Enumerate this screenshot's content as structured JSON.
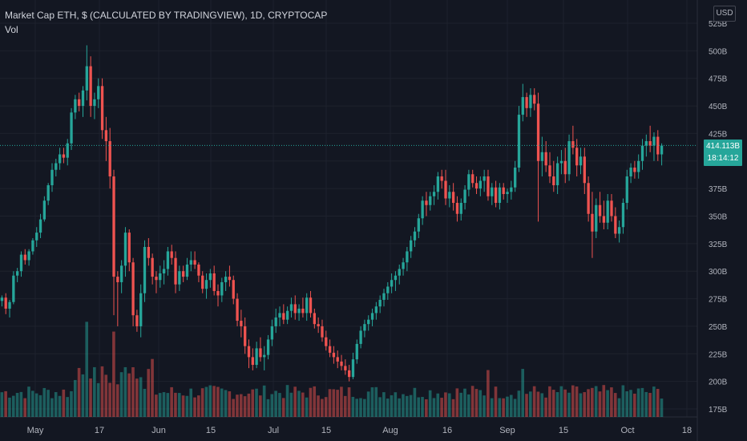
{
  "legend": {
    "title": "Market Cap ETH, $ (CALCULATED BY TRADINGVIEW), 1D, CRYPTOCAP",
    "indicator": "Vol"
  },
  "currency_button": "USD",
  "last_price": {
    "value": "414.113B",
    "countdown": "18:14:12"
  },
  "colors": {
    "background": "#131722",
    "up": "#26a69a",
    "down": "#ef5350",
    "grid": "#1e222d",
    "axis_text": "#b2b5be"
  },
  "chart_data": {
    "type": "candlestick",
    "y_axis_ticks": [
      "525B",
      "500B",
      "475B",
      "450B",
      "425B",
      "400B",
      "375B",
      "350B",
      "325B",
      "300B",
      "275B",
      "250B",
      "225B",
      "200B",
      "175B"
    ],
    "x_axis_ticks": [
      "May",
      "17",
      "Jun",
      "15",
      "Jul",
      "15",
      "Aug",
      "16",
      "Sep",
      "15",
      "Oct",
      "18"
    ],
    "current_value": 414.113,
    "unit": "B USD",
    "candles": [
      [
        273,
        278,
        268,
        276
      ],
      [
        276,
        280,
        261,
        266
      ],
      [
        266,
        274,
        258,
        272
      ],
      [
        272,
        300,
        270,
        296
      ],
      [
        296,
        303,
        290,
        300
      ],
      [
        300,
        318,
        295,
        315
      ],
      [
        315,
        320,
        306,
        310
      ],
      [
        310,
        320,
        305,
        318
      ],
      [
        318,
        330,
        315,
        328
      ],
      [
        328,
        340,
        322,
        335
      ],
      [
        335,
        352,
        330,
        347
      ],
      [
        347,
        368,
        345,
        364
      ],
      [
        364,
        380,
        360,
        378
      ],
      [
        378,
        398,
        372,
        392
      ],
      [
        392,
        402,
        386,
        398
      ],
      [
        398,
        412,
        392,
        406
      ],
      [
        406,
        412,
        398,
        403
      ],
      [
        403,
        420,
        396,
        416
      ],
      [
        416,
        448,
        410,
        444
      ],
      [
        444,
        460,
        438,
        456
      ],
      [
        456,
        462,
        445,
        450
      ],
      [
        450,
        468,
        440,
        464
      ],
      [
        464,
        505,
        455,
        486
      ],
      [
        486,
        495,
        440,
        450
      ],
      [
        450,
        462,
        438,
        456
      ],
      [
        456,
        475,
        448,
        468
      ],
      [
        468,
        475,
        420,
        428
      ],
      [
        428,
        440,
        400,
        418
      ],
      [
        418,
        430,
        375,
        386
      ],
      [
        386,
        392,
        260,
        295
      ],
      [
        295,
        300,
        250,
        290
      ],
      [
        290,
        310,
        280,
        305
      ],
      [
        305,
        340,
        295,
        335
      ],
      [
        335,
        338,
        300,
        308
      ],
      [
        308,
        312,
        250,
        260
      ],
      [
        260,
        265,
        245,
        250
      ],
      [
        250,
        288,
        240,
        280
      ],
      [
        280,
        328,
        272,
        322
      ],
      [
        322,
        330,
        305,
        312
      ],
      [
        312,
        316,
        288,
        295
      ],
      [
        295,
        300,
        280,
        292
      ],
      [
        292,
        305,
        285,
        298
      ],
      [
        298,
        310,
        288,
        302
      ],
      [
        302,
        322,
        296,
        318
      ],
      [
        318,
        324,
        306,
        312
      ],
      [
        312,
        318,
        280,
        288
      ],
      [
        288,
        305,
        282,
        300
      ],
      [
        300,
        305,
        290,
        295
      ],
      [
        295,
        312,
        292,
        306
      ],
      [
        306,
        318,
        300,
        310
      ],
      [
        310,
        318,
        302,
        306
      ],
      [
        306,
        308,
        290,
        296
      ],
      [
        296,
        300,
        280,
        284
      ],
      [
        284,
        298,
        275,
        292
      ],
      [
        292,
        302,
        285,
        298
      ],
      [
        298,
        305,
        278,
        282
      ],
      [
        282,
        288,
        268,
        278
      ],
      [
        278,
        294,
        272,
        290
      ],
      [
        290,
        300,
        282,
        295
      ],
      [
        295,
        305,
        286,
        292
      ],
      [
        292,
        296,
        270,
        275
      ],
      [
        275,
        280,
        250,
        255
      ],
      [
        255,
        265,
        240,
        250
      ],
      [
        250,
        258,
        225,
        232
      ],
      [
        232,
        238,
        212,
        222
      ],
      [
        222,
        230,
        210,
        215
      ],
      [
        215,
        236,
        212,
        230
      ],
      [
        230,
        240,
        218,
        222
      ],
      [
        222,
        232,
        210,
        224
      ],
      [
        224,
        242,
        220,
        238
      ],
      [
        238,
        256,
        232,
        250
      ],
      [
        250,
        266,
        244,
        258
      ],
      [
        258,
        268,
        250,
        262
      ],
      [
        262,
        270,
        252,
        256
      ],
      [
        256,
        268,
        252,
        264
      ],
      [
        264,
        276,
        258,
        270
      ],
      [
        270,
        278,
        256,
        262
      ],
      [
        262,
        270,
        255,
        266
      ],
      [
        266,
        276,
        258,
        262
      ],
      [
        262,
        280,
        255,
        276
      ],
      [
        276,
        282,
        258,
        262
      ],
      [
        262,
        266,
        248,
        252
      ],
      [
        252,
        258,
        244,
        250
      ],
      [
        250,
        256,
        236,
        240
      ],
      [
        240,
        246,
        228,
        232
      ],
      [
        232,
        238,
        222,
        226
      ],
      [
        226,
        232,
        216,
        222
      ],
      [
        222,
        228,
        212,
        218
      ],
      [
        218,
        224,
        210,
        214
      ],
      [
        214,
        220,
        206,
        210
      ],
      [
        210,
        215,
        200,
        204
      ],
      [
        204,
        226,
        202,
        220
      ],
      [
        220,
        238,
        216,
        234
      ],
      [
        234,
        250,
        230,
        246
      ],
      [
        246,
        256,
        240,
        252
      ],
      [
        252,
        260,
        246,
        256
      ],
      [
        256,
        266,
        250,
        262
      ],
      [
        262,
        272,
        256,
        268
      ],
      [
        268,
        278,
        262,
        274
      ],
      [
        274,
        284,
        268,
        280
      ],
      [
        280,
        290,
        274,
        286
      ],
      [
        286,
        298,
        280,
        292
      ],
      [
        292,
        300,
        282,
        296
      ],
      [
        296,
        306,
        288,
        302
      ],
      [
        302,
        312,
        296,
        308
      ],
      [
        308,
        322,
        300,
        318
      ],
      [
        318,
        332,
        312,
        328
      ],
      [
        328,
        340,
        322,
        336
      ],
      [
        336,
        352,
        330,
        348
      ],
      [
        348,
        368,
        342,
        364
      ],
      [
        364,
        372,
        350,
        360
      ],
      [
        360,
        372,
        355,
        368
      ],
      [
        368,
        378,
        360,
        372
      ],
      [
        372,
        390,
        365,
        386
      ],
      [
        386,
        392,
        375,
        382
      ],
      [
        382,
        392,
        360,
        366
      ],
      [
        366,
        378,
        358,
        372
      ],
      [
        372,
        380,
        355,
        362
      ],
      [
        362,
        368,
        345,
        352
      ],
      [
        352,
        366,
        346,
        362
      ],
      [
        362,
        378,
        356,
        374
      ],
      [
        374,
        392,
        368,
        388
      ],
      [
        388,
        392,
        376,
        380
      ],
      [
        380,
        386,
        370,
        375
      ],
      [
        375,
        386,
        368,
        382
      ],
      [
        382,
        392,
        372,
        386
      ],
      [
        386,
        392,
        364,
        368
      ],
      [
        368,
        380,
        360,
        376
      ],
      [
        376,
        382,
        358,
        362
      ],
      [
        362,
        380,
        356,
        376
      ],
      [
        376,
        380,
        365,
        370
      ],
      [
        370,
        375,
        362,
        372
      ],
      [
        372,
        382,
        365,
        376
      ],
      [
        376,
        400,
        372,
        394
      ],
      [
        394,
        450,
        390,
        442
      ],
      [
        442,
        470,
        436,
        458
      ],
      [
        458,
        462,
        440,
        448
      ],
      [
        448,
        466,
        440,
        460
      ],
      [
        460,
        466,
        446,
        452
      ],
      [
        452,
        462,
        345,
        400
      ],
      [
        400,
        422,
        386,
        408
      ],
      [
        408,
        418,
        390,
        396
      ],
      [
        396,
        408,
        380,
        386
      ],
      [
        386,
        400,
        372,
        378
      ],
      [
        378,
        404,
        370,
        398
      ],
      [
        398,
        410,
        388,
        400
      ],
      [
        400,
        412,
        380,
        388
      ],
      [
        388,
        424,
        382,
        418
      ],
      [
        418,
        432,
        406,
        412
      ],
      [
        412,
        420,
        386,
        396
      ],
      [
        396,
        412,
        388,
        404
      ],
      [
        404,
        412,
        370,
        380
      ],
      [
        380,
        386,
        345,
        352
      ],
      [
        352,
        372,
        312,
        336
      ],
      [
        336,
        366,
        330,
        360
      ],
      [
        360,
        372,
        344,
        350
      ],
      [
        350,
        364,
        338,
        344
      ],
      [
        344,
        370,
        338,
        364
      ],
      [
        364,
        370,
        345,
        350
      ],
      [
        350,
        358,
        330,
        334
      ],
      [
        334,
        346,
        326,
        340
      ],
      [
        340,
        366,
        334,
        362
      ],
      [
        362,
        392,
        356,
        386
      ],
      [
        386,
        398,
        380,
        394
      ],
      [
        394,
        400,
        384,
        390
      ],
      [
        390,
        406,
        384,
        400
      ],
      [
        400,
        420,
        392,
        414
      ],
      [
        414,
        424,
        404,
        418
      ],
      [
        418,
        432,
        408,
        414
      ],
      [
        414,
        426,
        400,
        422
      ],
      [
        422,
        428,
        400,
        406
      ],
      [
        406,
        416,
        396,
        414
      ]
    ],
    "volume_note": "Volume histogram, values not labeled"
  }
}
